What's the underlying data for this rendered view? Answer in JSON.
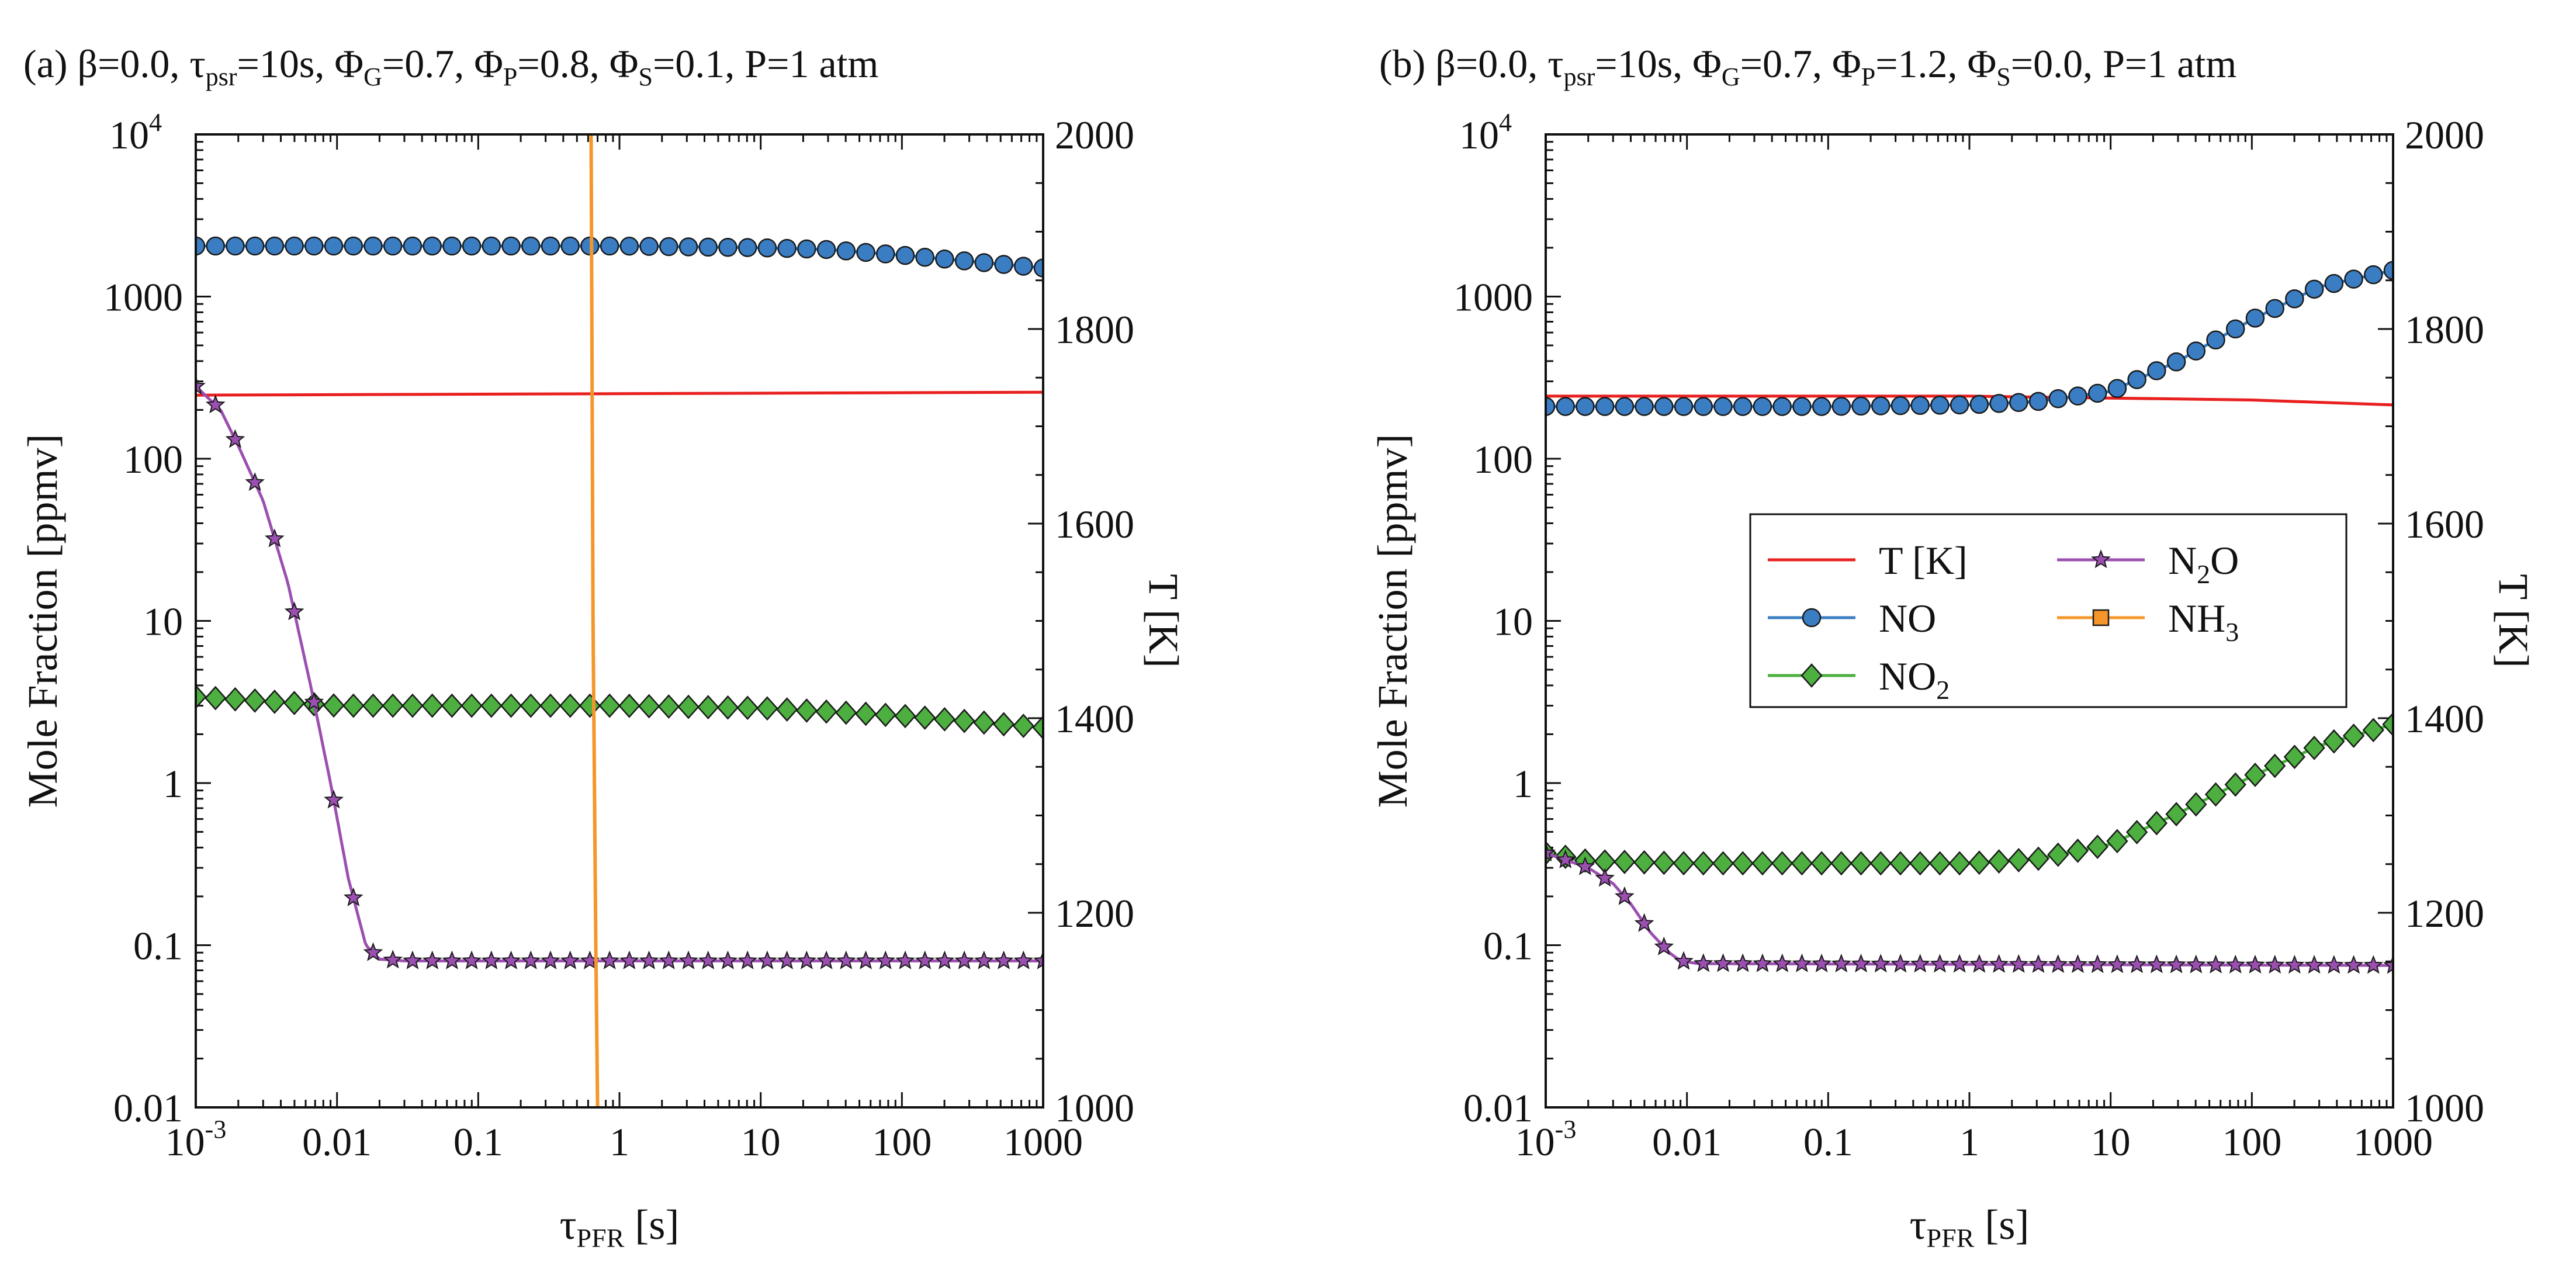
{
  "chart_data": [
    {
      "type": "line",
      "panel": "a",
      "title": {
        "prefix": "(a) β=0.0, τ",
        "tau_sub": "psr",
        "mid1": "=10s, Φ",
        "g_sub": "G",
        "mid2": "=0.7, Φ",
        "p_sub": "P",
        "mid3": "=0.8, Φ",
        "s_sub": "S",
        "suffix": "=0.1, P=1 atm"
      },
      "xlabel": {
        "main": "τ",
        "sub": "PFR",
        "unit": " [s]"
      },
      "ylabel": "Mole Fraction [ppmv]",
      "y2label": "T [K]",
      "x_scale": "log",
      "xlim": [
        0.001,
        1000
      ],
      "y_scale": "log",
      "ylim": [
        0.01,
        10000
      ],
      "y2lim": [
        1000,
        2000
      ],
      "x_ticks": [
        {
          "value": 0.001,
          "base": "10",
          "exp": "-3"
        },
        {
          "value": 0.01,
          "label": "0.01"
        },
        {
          "value": 0.1,
          "label": "0.1"
        },
        {
          "value": 1,
          "label": "1"
        },
        {
          "value": 10,
          "label": "10"
        },
        {
          "value": 100,
          "label": "100"
        },
        {
          "value": 1000,
          "label": "1000"
        }
      ],
      "y_ticks": [
        {
          "value": 0.01,
          "label": "0.01"
        },
        {
          "value": 0.1,
          "label": "0.1"
        },
        {
          "value": 1,
          "label": "1"
        },
        {
          "value": 10,
          "label": "10"
        },
        {
          "value": 100,
          "label": "100"
        },
        {
          "value": 1000,
          "label": "1000"
        },
        {
          "value": 10000,
          "base": "10",
          "exp": "4"
        }
      ],
      "y2_ticks": [
        {
          "value": 1000,
          "label": "1000"
        },
        {
          "value": 1200,
          "label": "1200"
        },
        {
          "value": 1400,
          "label": "1400"
        },
        {
          "value": 1600,
          "label": "1600"
        },
        {
          "value": 1800,
          "label": "1800"
        },
        {
          "value": 2000,
          "label": "2000"
        }
      ],
      "series": [
        {
          "key": "T",
          "axis": "y2",
          "color": "#e8201f",
          "marker": "none",
          "x": [
            0.001,
            1000
          ],
          "y": [
            1732,
            1735
          ]
        },
        {
          "key": "NO",
          "axis": "y",
          "color": "#3a7dc2",
          "marker": "circle",
          "x_range": [
            0.001,
            1000
          ],
          "n_markers": 44,
          "x": [
            0.001,
            0.01,
            0.1,
            1,
            10,
            30,
            100,
            300,
            1000
          ],
          "y": [
            2050,
            2050,
            2050,
            2050,
            2000,
            1950,
            1800,
            1650,
            1500
          ]
        },
        {
          "key": "NO2",
          "axis": "y",
          "color": "#4caf3f",
          "marker": "diamond",
          "x_range": [
            0.001,
            1000
          ],
          "n_markers": 44,
          "x": [
            0.001,
            0.01,
            0.1,
            1,
            10,
            100,
            1000
          ],
          "y": [
            3.4,
            3.0,
            3.0,
            3.0,
            2.9,
            2.6,
            2.2
          ]
        },
        {
          "key": "N2O",
          "axis": "y",
          "color": "#9b4fb0",
          "marker": "star",
          "x_range": [
            0.001,
            1000
          ],
          "n_markers": 44,
          "x": [
            0.001,
            0.0015,
            0.002,
            0.003,
            0.0045,
            0.0065,
            0.009,
            0.012,
            0.016,
            0.02,
            0.03,
            1000
          ],
          "y": [
            280,
            200,
            120,
            55,
            17,
            4,
            1.0,
            0.26,
            0.1,
            0.082,
            0.08,
            0.08
          ]
        },
        {
          "key": "NH3",
          "axis": "y",
          "color": "#f5962a",
          "marker": "square",
          "show_markers": false,
          "x": [
            0.63,
            0.65,
            0.68,
            0.7
          ],
          "y": [
            10000,
            10,
            0.1,
            0.01
          ]
        }
      ]
    },
    {
      "type": "line",
      "panel": "b",
      "title": {
        "prefix": "(b) β=0.0, τ",
        "tau_sub": "psr",
        "mid1": "=10s, Φ",
        "g_sub": "G",
        "mid2": "=0.7, Φ",
        "p_sub": "P",
        "mid3": "=1.2, Φ",
        "s_sub": "S",
        "suffix": "=0.0, P=1 atm"
      },
      "xlabel": {
        "main": "τ",
        "sub": "PFR",
        "unit": " [s]"
      },
      "ylabel": "Mole Fraction [ppmv]",
      "y2label": "T [K]",
      "x_scale": "log",
      "xlim": [
        0.001,
        1000
      ],
      "y_scale": "log",
      "ylim": [
        0.01,
        10000
      ],
      "y2lim": [
        1000,
        2000
      ],
      "x_ticks": [
        {
          "value": 0.001,
          "base": "10",
          "exp": "-3"
        },
        {
          "value": 0.01,
          "label": "0.01"
        },
        {
          "value": 0.1,
          "label": "0.1"
        },
        {
          "value": 1,
          "label": "1"
        },
        {
          "value": 10,
          "label": "10"
        },
        {
          "value": 100,
          "label": "100"
        },
        {
          "value": 1000,
          "label": "1000"
        }
      ],
      "y_ticks": [
        {
          "value": 0.01,
          "label": "0.01"
        },
        {
          "value": 0.1,
          "label": "0.1"
        },
        {
          "value": 1,
          "label": "1"
        },
        {
          "value": 10,
          "label": "10"
        },
        {
          "value": 100,
          "label": "100"
        },
        {
          "value": 1000,
          "label": "1000"
        },
        {
          "value": 10000,
          "base": "10",
          "exp": "4"
        }
      ],
      "y2_ticks": [
        {
          "value": 1000,
          "label": "1000"
        },
        {
          "value": 1200,
          "label": "1200"
        },
        {
          "value": 1400,
          "label": "1400"
        },
        {
          "value": 1600,
          "label": "1600"
        },
        {
          "value": 1800,
          "label": "1800"
        },
        {
          "value": 2000,
          "label": "2000"
        }
      ],
      "legend": {
        "placement": "center-right",
        "entries": [
          {
            "key": "T",
            "label": "T [K]"
          },
          {
            "key": "N2O",
            "label_main": "N",
            "label_sub": "2",
            "label_tail": "O"
          },
          {
            "key": "NO",
            "label": "NO"
          },
          {
            "key": "NH3",
            "label_main": "NH",
            "label_sub": "3",
            "label_tail": ""
          },
          {
            "key": "NO2",
            "label_main": "NO",
            "label_sub": "2",
            "label_tail": ""
          }
        ]
      },
      "series": [
        {
          "key": "T",
          "axis": "y2",
          "color": "#e8201f",
          "marker": "none",
          "x": [
            0.001,
            1,
            10,
            100,
            1000
          ],
          "y": [
            1731,
            1731,
            1729,
            1727,
            1722
          ]
        },
        {
          "key": "NO",
          "axis": "y",
          "color": "#3a7dc2",
          "marker": "circle",
          "x_range": [
            0.001,
            1000
          ],
          "n_markers": 44,
          "x": [
            0.001,
            0.01,
            0.1,
            1,
            3,
            10,
            30,
            100,
            300,
            1000
          ],
          "y": [
            210,
            210,
            210,
            215,
            225,
            260,
            400,
            720,
            1150,
            1450
          ]
        },
        {
          "key": "NO2",
          "axis": "y",
          "color": "#4caf3f",
          "marker": "diamond",
          "x_range": [
            0.001,
            1000
          ],
          "n_markers": 44,
          "x": [
            0.001,
            0.002,
            0.01,
            0.1,
            1,
            3,
            10,
            30,
            100,
            300,
            1000
          ],
          "y": [
            0.37,
            0.33,
            0.32,
            0.32,
            0.32,
            0.34,
            0.42,
            0.65,
            1.1,
            1.7,
            2.3
          ]
        },
        {
          "key": "N2O",
          "axis": "y",
          "color": "#9b4fb0",
          "marker": "star",
          "x_range": [
            0.001,
            1000
          ],
          "n_markers": 44,
          "x": [
            0.001,
            0.002,
            0.003,
            0.004,
            0.0055,
            0.0075,
            0.009,
            0.012,
            1000
          ],
          "y": [
            0.37,
            0.3,
            0.24,
            0.18,
            0.12,
            0.09,
            0.08,
            0.077,
            0.075
          ]
        },
        {
          "key": "NH3",
          "axis": "y",
          "color": "#f5962a",
          "marker": "square",
          "show_markers": false,
          "x": [],
          "y": []
        }
      ]
    }
  ]
}
